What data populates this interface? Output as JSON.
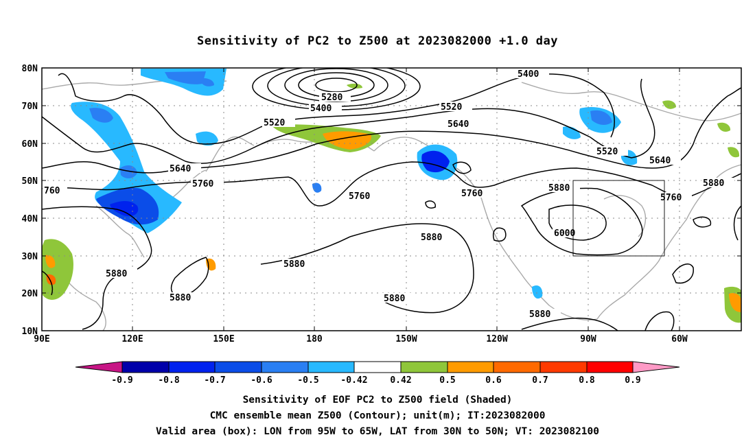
{
  "title": "Sensitivity of PC2 to Z500 at 2023082000 +1.0 day",
  "map": {
    "lat_labels": [
      "80N",
      "70N",
      "60N",
      "50N",
      "40N",
      "30N",
      "20N",
      "10N"
    ],
    "lon_labels": [
      "90E",
      "120E",
      "150E",
      "180",
      "150W",
      "120W",
      "90W",
      "60W"
    ],
    "valid_box": {
      "lon_west": "95W",
      "lon_east": "65W",
      "lat_south": "30N",
      "lat_north": "50N"
    },
    "contour_labels": [
      "5280",
      "5400",
      "5400",
      "5520",
      "5520",
      "5520",
      "5640",
      "5640",
      "5640",
      "5760",
      "5760",
      "5760",
      "5760",
      "760",
      "5880",
      "5880",
      "5880",
      "5880",
      "5880",
      "5880",
      "5880",
      "6000"
    ]
  },
  "colorbar": {
    "labels": [
      "-0.9",
      "-0.8",
      "-0.7",
      "-0.6",
      "-0.5",
      "-0.42",
      "0.42",
      "0.5",
      "0.6",
      "0.7",
      "0.8",
      "0.9"
    ],
    "colors": [
      "#c71585",
      "#0000aa",
      "#0022ee",
      "#0b4de8",
      "#2a7ff3",
      "#28b9ff",
      "#ffffff",
      "#8fc63a",
      "#ff9b00",
      "#ff6a00",
      "#ff3a00",
      "#ff0000",
      "#ff9ac6"
    ]
  },
  "caption": {
    "line1": "Sensitivity of EOF PC2 to Z500 field (Shaded)",
    "line2": "CMC ensemble mean Z500 (Contour); unit(m); IT:2023082000",
    "line3": "Valid area (box): LON from 95W to 65W, LAT from 30N to 50N; VT: 2023082100"
  }
}
